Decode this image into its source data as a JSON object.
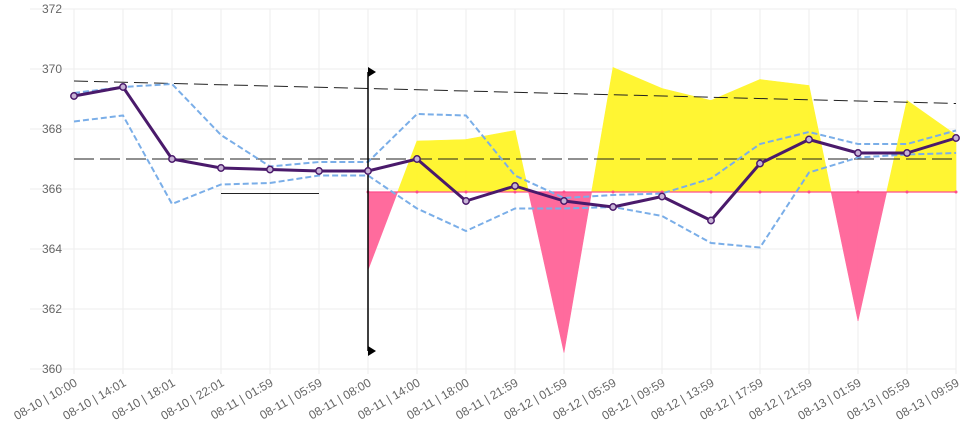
{
  "chart_data": {
    "type": "line",
    "categories": [
      "08-10 | 10:00",
      "08-10 | 14:01",
      "08-10 | 18:01",
      "08-10 | 22:01",
      "08-11 | 01:59",
      "08-11 | 05:59",
      "08-11 | 08:00",
      "08-11 | 14:00",
      "08-11 | 18:00",
      "08-11 | 21:59",
      "08-12 | 01:59",
      "08-12 | 05:59",
      "08-12 | 09:59",
      "08-12 | 13:59",
      "08-12 | 17:59",
      "08-12 | 21:59",
      "08-13 | 01:59",
      "08-13 | 05:59",
      "08-13 | 09:59"
    ],
    "ylim": [
      360,
      372
    ],
    "yticks": [
      360,
      362,
      364,
      366,
      368,
      370,
      372
    ],
    "grid": true,
    "series": [
      {
        "role": "main",
        "color": "#4a1a6b",
        "values": [
          369.1,
          369.4,
          367.0,
          366.7,
          366.65,
          366.6,
          366.6,
          367.0,
          365.6,
          366.1,
          365.6,
          365.4,
          365.75,
          364.95,
          366.85,
          367.65,
          367.2,
          367.2,
          367.7
        ]
      },
      {
        "role": "band-upper",
        "color": "#7aaee8",
        "values": [
          369.2,
          369.4,
          369.5,
          367.8,
          366.75,
          366.9,
          366.9,
          368.5,
          368.45,
          366.45,
          365.7,
          365.8,
          365.85,
          366.35,
          367.5,
          367.9,
          367.5,
          367.5,
          367.95
        ]
      },
      {
        "role": "band-lower",
        "color": "#7aaee8",
        "values": [
          368.25,
          368.45,
          365.5,
          366.15,
          366.2,
          366.45,
          366.45,
          365.35,
          364.6,
          365.35,
          365.35,
          365.4,
          365.1,
          364.2,
          364.05,
          366.55,
          367.05,
          367.15,
          367.2
        ]
      }
    ],
    "fill_baseline": 365.9,
    "fill_top": {
      "x_start": 6,
      "values": [
        363.3,
        367.6,
        367.65,
        367.95,
        360.55,
        370.05,
        369.35,
        368.95,
        369.65,
        369.45,
        361.6,
        368.95,
        367.8
      ]
    },
    "fill_colors": {
      "above": "#fff533",
      "below": "#ff6b9d"
    },
    "trend_line_1": {
      "from": [
        0,
        369.6
      ],
      "to": [
        18,
        368.85
      ]
    },
    "trend_line_2": {
      "from": [
        0,
        367.0
      ],
      "to": [
        18,
        367.0
      ]
    },
    "short_hline": {
      "from": [
        3,
        365.85
      ],
      "to": [
        5,
        365.85
      ]
    },
    "vertical_marker": {
      "x": 6,
      "from": 369.9,
      "to": 360.6
    }
  }
}
